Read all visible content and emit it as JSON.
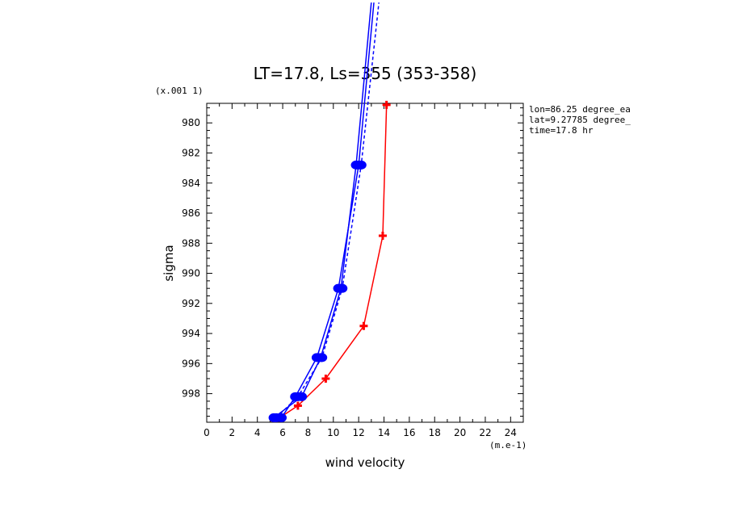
{
  "chart_data": {
    "type": "line",
    "title": "LT=17.8, Ls=355 (353-358)",
    "xlabel": "wind velocity",
    "ylabel": "sigma",
    "x_unit_label": "(m.e-1)",
    "y_unit_label": "(x.001 1)",
    "xlim": [
      0,
      25
    ],
    "ylim": [
      999.9,
      978.7
    ],
    "x_ticks": [
      0,
      2,
      4,
      6,
      8,
      10,
      12,
      14,
      16,
      18,
      20,
      22,
      24
    ],
    "y_ticks": [
      980,
      982,
      984,
      986,
      988,
      990,
      992,
      994,
      996,
      998
    ],
    "annotations": [
      "lon=86.25 degree_ea",
      "lat=9.27785 degree_",
      "time=17.8 hr"
    ],
    "series": [
      {
        "color": "#ff0000",
        "dash": false,
        "marker": "cross",
        "points": [
          [
            5.4,
            999.8
          ],
          [
            7.2,
            998.8
          ],
          [
            9.4,
            997.0
          ],
          [
            12.4,
            993.5
          ],
          [
            13.9,
            987.5
          ],
          [
            14.2,
            978.8
          ]
        ]
      },
      {
        "color": "#0000ff",
        "dash": false,
        "marker": "circle",
        "points": [
          [
            5.3,
            999.6
          ],
          [
            7.5,
            998.2
          ],
          [
            9.0,
            995.6
          ],
          [
            10.6,
            991.0
          ],
          [
            11.8,
            982.8
          ],
          [
            13.0,
            972.0
          ]
        ]
      },
      {
        "color": "#0000ff",
        "dash": false,
        "marker": "circle",
        "points": [
          [
            5.9,
            999.6
          ],
          [
            7.0,
            998.2
          ],
          [
            8.7,
            995.6
          ],
          [
            10.4,
            991.0
          ],
          [
            12.0,
            982.8
          ],
          [
            13.2,
            972.0
          ]
        ]
      },
      {
        "color": "#0000ff",
        "dash": true,
        "marker": "circle",
        "points": [
          [
            5.5,
            999.6
          ],
          [
            7.2,
            998.2
          ],
          [
            9.1,
            995.6
          ],
          [
            10.7,
            991.0
          ],
          [
            12.2,
            982.8
          ],
          [
            13.6,
            972.0
          ]
        ]
      }
    ]
  }
}
